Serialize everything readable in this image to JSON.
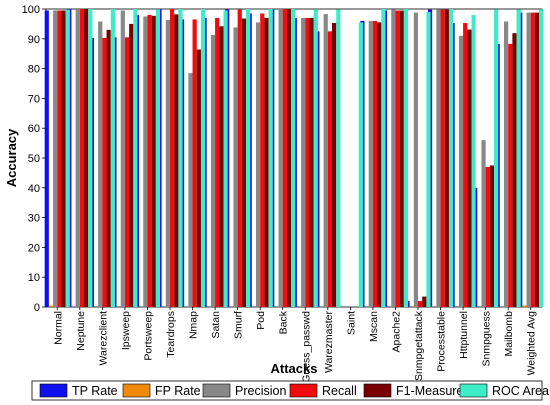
{
  "chart_data": {
    "type": "bar",
    "xlabel": "Attacks",
    "ylabel": "Accuracy",
    "ylim": [
      0,
      100
    ],
    "yticks": [
      0,
      10,
      20,
      30,
      40,
      50,
      60,
      70,
      80,
      90,
      100
    ],
    "grid": false,
    "legend_position": "bottom",
    "categories": [
      "Normal",
      "Neptune",
      "Warezclient",
      "Ipsweep",
      "Portsweep",
      "Teardrops",
      "Nmap",
      "Satan",
      "Smurf",
      "Pod",
      "Back",
      "Guess_passwd",
      "Warezmaster",
      "Saint",
      "Mscan",
      "Apache2",
      "Snmpgetattack",
      "Processtable",
      "Httptunnel",
      "Snmpguess",
      "Mailbomb",
      "Weighted Avg"
    ],
    "series": [
      {
        "name": "TP Rate",
        "color": "#1010ee",
        "values": [
          99.5,
          100,
          90.3,
          90.5,
          98,
          100,
          96.5,
          97,
          99.8,
          98.5,
          100,
          97,
          92.5,
          0,
          96,
          99.5,
          2,
          99.8,
          95.3,
          40,
          88.3,
          98.8
        ]
      },
      {
        "name": "FP Rate",
        "color": "#f08a0a",
        "values": [
          0.5,
          0,
          0,
          0,
          0,
          0,
          0,
          0,
          0,
          0,
          0,
          0,
          0,
          0,
          0,
          0,
          0,
          0,
          0,
          0,
          0,
          0.5
        ]
      },
      {
        "name": "Precision",
        "color": "#888888",
        "values": [
          99.5,
          100,
          95.8,
          99.5,
          97.5,
          96.3,
          78.5,
          91.3,
          93.8,
          95.5,
          100,
          97,
          98.3,
          0,
          96,
          99.8,
          98.8,
          99.8,
          91,
          56,
          95.8,
          98.8
        ]
      },
      {
        "name": "Recall",
        "color": "#ee0c0c",
        "values": [
          99.5,
          100,
          90.3,
          90.5,
          98,
          100,
          96.5,
          97,
          99.8,
          98.5,
          100,
          97,
          92.5,
          0,
          96,
          99.5,
          2,
          99.8,
          95.3,
          47,
          88.3,
          98.8
        ]
      },
      {
        "name": "F1-Measure",
        "color": "#7a0000",
        "values": [
          99.5,
          100,
          93,
          95,
          97.7,
          98.2,
          86.4,
          94.2,
          96.8,
          97,
          100,
          97,
          95.3,
          0,
          95.5,
          99.5,
          3.5,
          99.8,
          93.1,
          47.5,
          91.9,
          98.8
        ]
      },
      {
        "name": "ROC Area",
        "color": "#40ecc8",
        "values": [
          99.8,
          100,
          100,
          100,
          99.9,
          100,
          100,
          99.5,
          100,
          100,
          100,
          99.9,
          99.8,
          95.5,
          100,
          100,
          99,
          100,
          98,
          99.8,
          99.8,
          99.9
        ]
      }
    ]
  }
}
